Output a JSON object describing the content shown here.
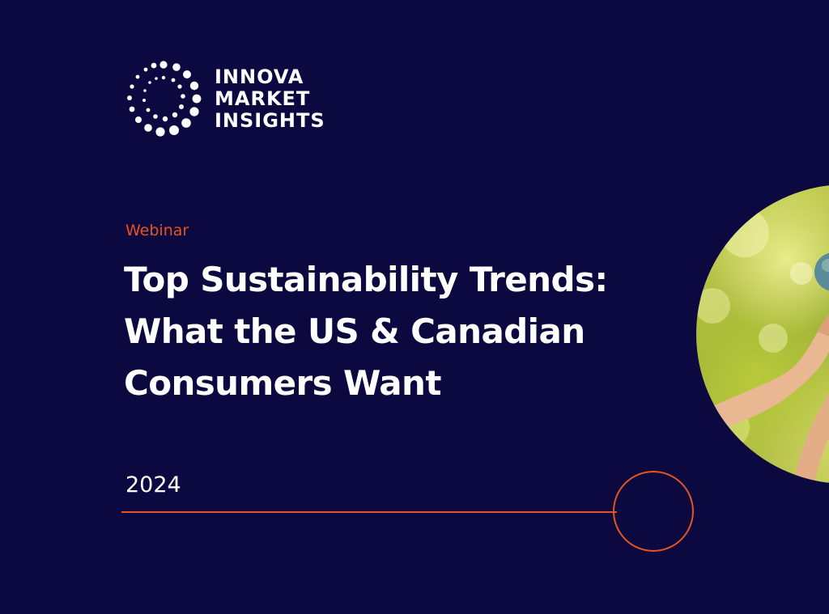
{
  "logo": {
    "icon": "dotted-circle-logo-icon",
    "lines": [
      "INNOVA",
      "MARKET",
      "INSIGHTS"
    ]
  },
  "eyebrow": "Webinar",
  "title": {
    "lines": [
      "Top Sustainability Trends:",
      "What the US & Canadian",
      "Consumers Want"
    ]
  },
  "year": "2024",
  "colors": {
    "background": "#0c0840",
    "accent": "#e8541e",
    "text": "#ffffff"
  },
  "photo": {
    "icon": "hands-reaching-photo"
  }
}
